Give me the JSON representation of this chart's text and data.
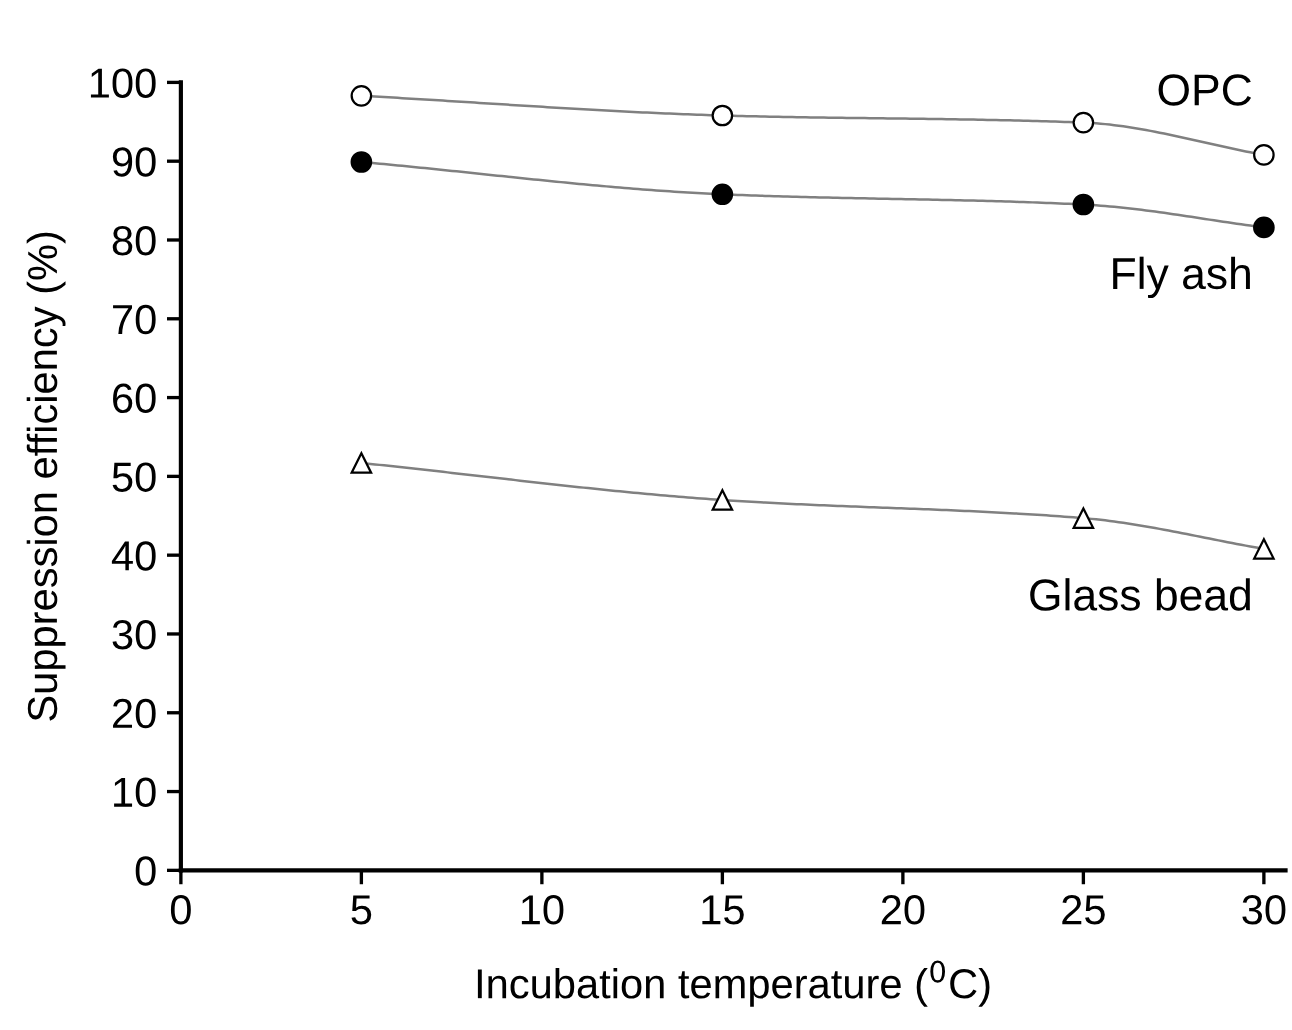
{
  "chart_data": {
    "type": "line",
    "xlabel": "Incubation temperature ($^{0}$C)",
    "ylabel": "Suppression efficiency (%)",
    "x": [
      5,
      15,
      25,
      30
    ],
    "series": [
      {
        "name": "OPC",
        "color": "#ffffff",
        "marker": "circle",
        "values": [
          98.3,
          95.8,
          94.9,
          90.8
        ]
      },
      {
        "name": "Fly ash",
        "color": "#000000",
        "marker": "circle",
        "values": [
          89.9,
          85.8,
          84.5,
          81.6
        ]
      },
      {
        "name": "Glass bead",
        "color": "#ffffff",
        "marker": "triangle",
        "values": [
          51.7,
          47.0,
          44.7,
          40.8
        ]
      }
    ],
    "xlim": [
      0,
      30.6
    ],
    "ylim": [
      0,
      100
    ],
    "xticks": [
      0,
      5,
      10,
      15,
      20,
      25,
      30
    ],
    "yticks": [
      0,
      10,
      20,
      30,
      40,
      50,
      60,
      70,
      80,
      90,
      100
    ],
    "grid": false,
    "legend": false
  }
}
